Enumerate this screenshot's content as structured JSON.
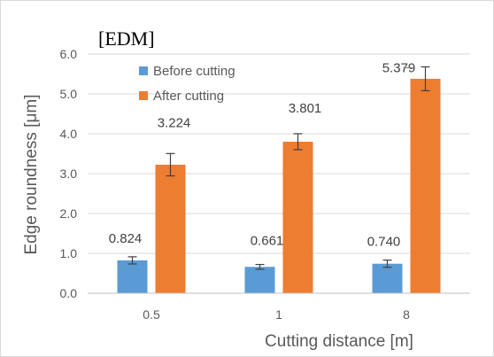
{
  "chart_data": {
    "type": "bar",
    "title": "[EDM]",
    "xlabel": "Cutting distance [m]",
    "ylabel": "Edge roundness [μm]",
    "ylim": [
      0,
      6
    ],
    "yticks": [
      "0.0",
      "1.0",
      "2.0",
      "3.0",
      "4.0",
      "5.0",
      "6.0"
    ],
    "categories": [
      "0.5",
      "1",
      "8"
    ],
    "grid": true,
    "legend_position": "top-left",
    "series": [
      {
        "name": "Before cutting",
        "color": "#5b9bd5",
        "values": [
          0.824,
          0.661,
          0.74
        ],
        "labels": [
          "0.824",
          "0.661",
          "0.740"
        ],
        "errors": [
          0.09,
          0.06,
          0.09
        ]
      },
      {
        "name": "After cutting",
        "color": "#ed7d31",
        "values": [
          3.224,
          3.801,
          5.379
        ],
        "labels": [
          "3.224",
          "3.801",
          "5.379"
        ],
        "errors": [
          0.28,
          0.2,
          0.3
        ]
      }
    ]
  }
}
